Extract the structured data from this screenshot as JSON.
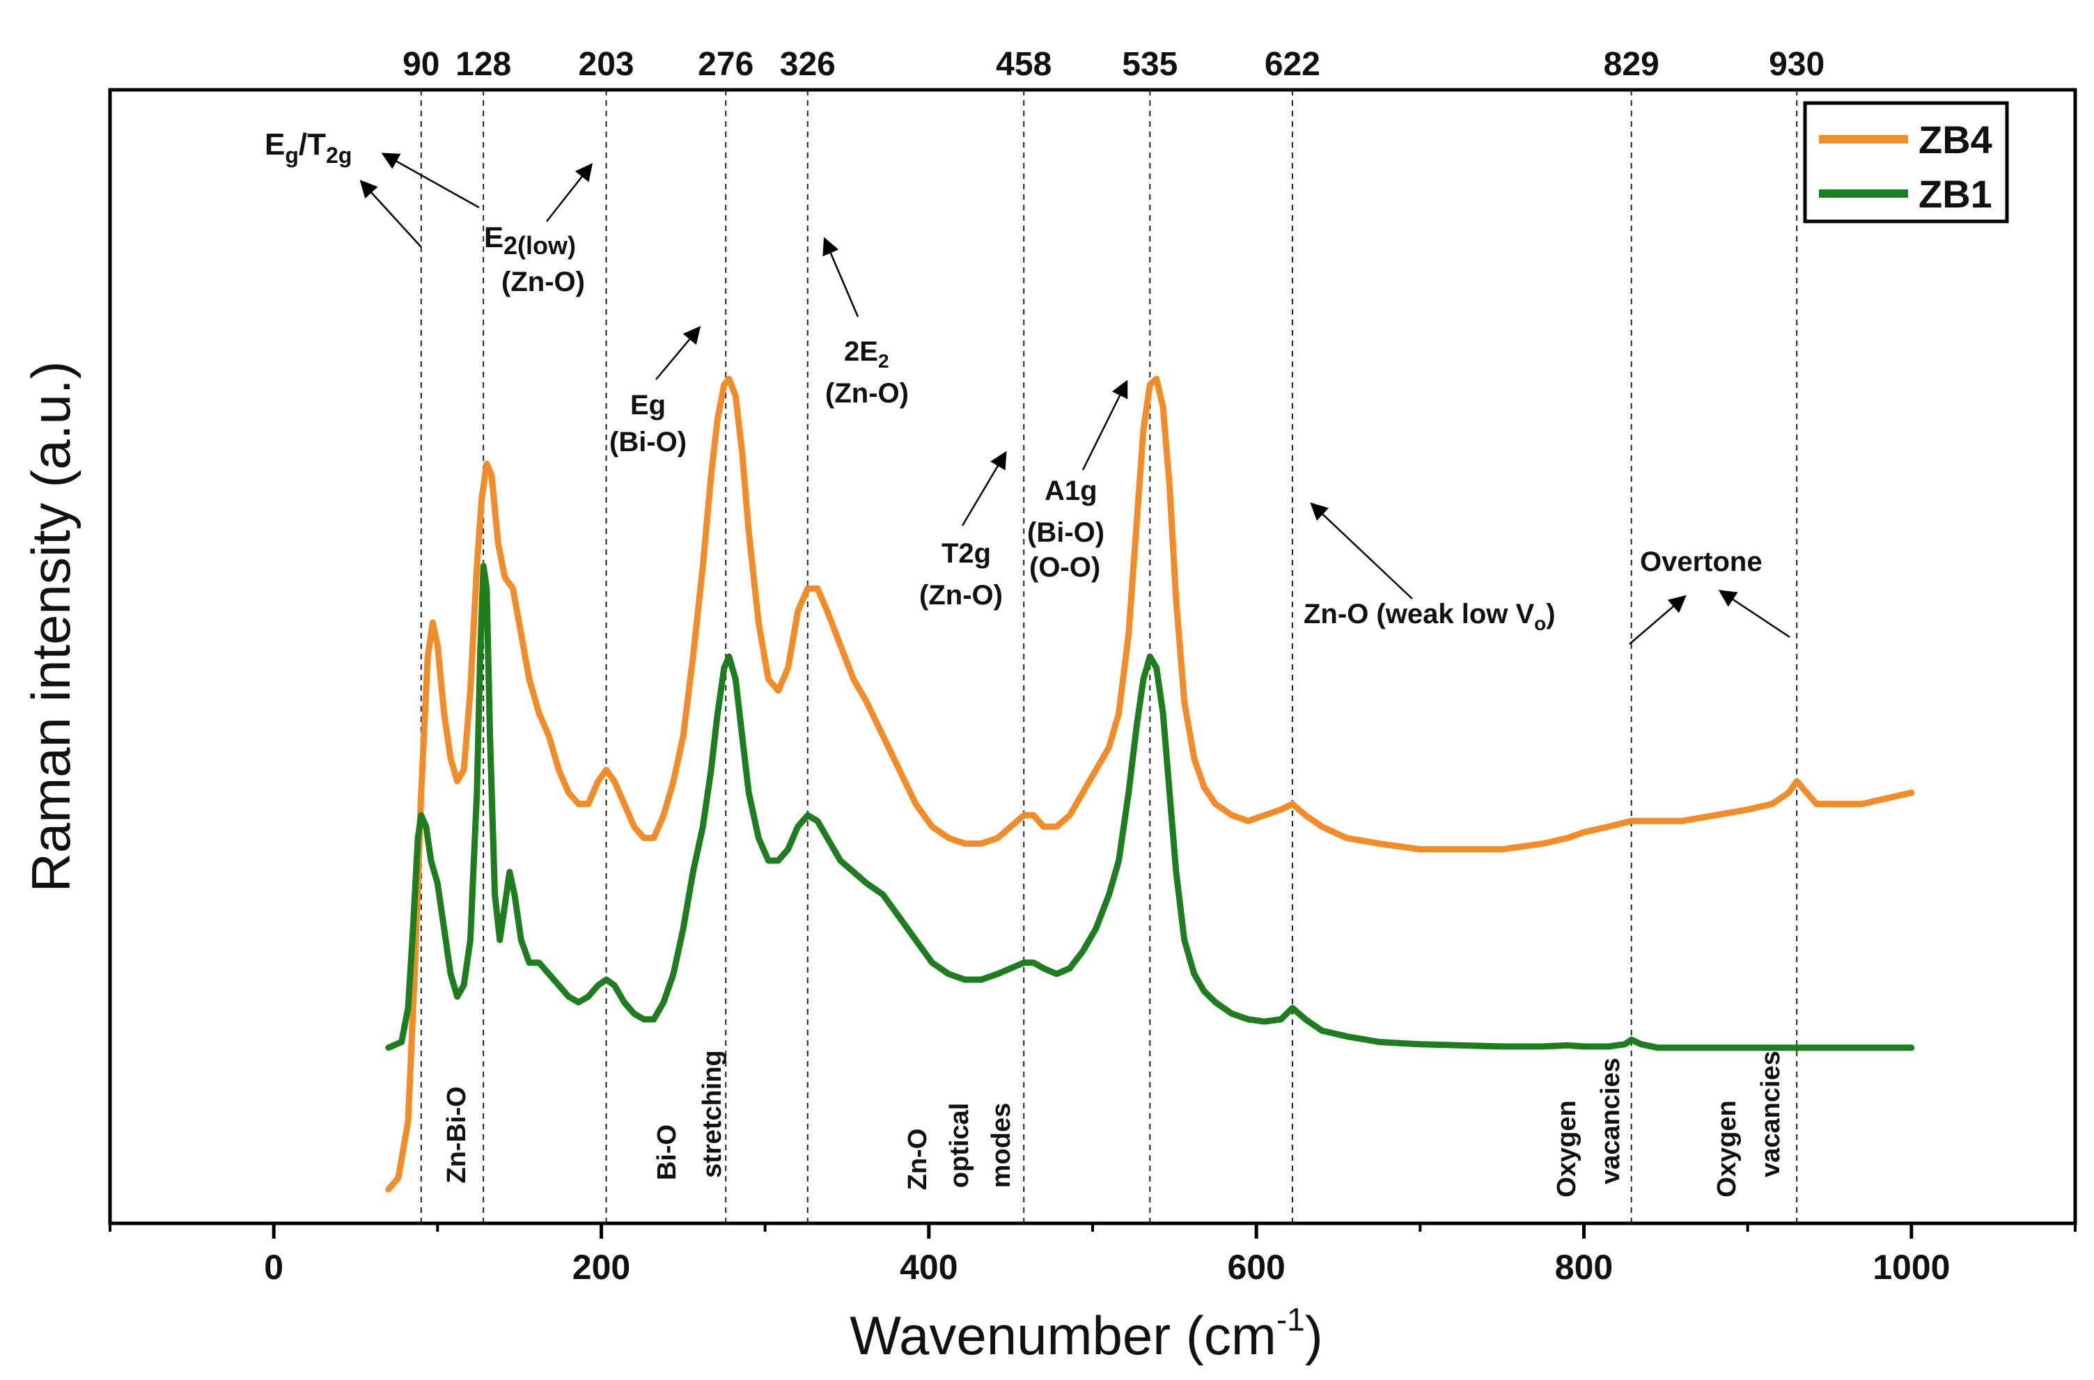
{
  "chart_data": {
    "type": "line",
    "xlabel": "Wavenumber (cm",
    "xlabel_sup": "-1",
    "xlabel_close": ")",
    "ylabel": "Raman intensity (a.u.)",
    "xlim": [
      -100,
      1100
    ],
    "x_ticks": [
      0,
      200,
      400,
      600,
      800,
      1000
    ],
    "x_minor_ticks": [
      -100,
      100,
      300,
      500,
      700,
      900,
      1100
    ],
    "y_ticks": [],
    "grid": false,
    "legend_position": "top-right",
    "series": [
      {
        "name": "ZB4",
        "color": "#f28c28",
        "points": [
          [
            70,
            0.03
          ],
          [
            76,
            0.04
          ],
          [
            82,
            0.09
          ],
          [
            86,
            0.22
          ],
          [
            90,
            0.38
          ],
          [
            94,
            0.5
          ],
          [
            97,
            0.53
          ],
          [
            100,
            0.51
          ],
          [
            104,
            0.45
          ],
          [
            108,
            0.41
          ],
          [
            112,
            0.39
          ],
          [
            116,
            0.4
          ],
          [
            120,
            0.47
          ],
          [
            124,
            0.58
          ],
          [
            127,
            0.64
          ],
          [
            130,
            0.67
          ],
          [
            133,
            0.66
          ],
          [
            137,
            0.6
          ],
          [
            141,
            0.57
          ],
          [
            146,
            0.56
          ],
          [
            151,
            0.52
          ],
          [
            156,
            0.48
          ],
          [
            162,
            0.45
          ],
          [
            168,
            0.43
          ],
          [
            174,
            0.4
          ],
          [
            180,
            0.38
          ],
          [
            186,
            0.37
          ],
          [
            192,
            0.37
          ],
          [
            198,
            0.39
          ],
          [
            203,
            0.4
          ],
          [
            208,
            0.39
          ],
          [
            214,
            0.37
          ],
          [
            220,
            0.35
          ],
          [
            226,
            0.34
          ],
          [
            232,
            0.34
          ],
          [
            238,
            0.36
          ],
          [
            244,
            0.39
          ],
          [
            250,
            0.43
          ],
          [
            256,
            0.5
          ],
          [
            262,
            0.58
          ],
          [
            267,
            0.66
          ],
          [
            271,
            0.71
          ],
          [
            275,
            0.74
          ],
          [
            278,
            0.745
          ],
          [
            282,
            0.73
          ],
          [
            286,
            0.68
          ],
          [
            290,
            0.61
          ],
          [
            296,
            0.53
          ],
          [
            302,
            0.48
          ],
          [
            308,
            0.47
          ],
          [
            314,
            0.49
          ],
          [
            320,
            0.54
          ],
          [
            326,
            0.56
          ],
          [
            332,
            0.56
          ],
          [
            338,
            0.54
          ],
          [
            346,
            0.51
          ],
          [
            354,
            0.48
          ],
          [
            362,
            0.46
          ],
          [
            372,
            0.43
          ],
          [
            382,
            0.4
          ],
          [
            392,
            0.37
          ],
          [
            402,
            0.35
          ],
          [
            412,
            0.34
          ],
          [
            422,
            0.335
          ],
          [
            432,
            0.335
          ],
          [
            442,
            0.34
          ],
          [
            450,
            0.35
          ],
          [
            458,
            0.36
          ],
          [
            464,
            0.36
          ],
          [
            470,
            0.35
          ],
          [
            478,
            0.35
          ],
          [
            486,
            0.36
          ],
          [
            494,
            0.38
          ],
          [
            502,
            0.4
          ],
          [
            510,
            0.42
          ],
          [
            516,
            0.45
          ],
          [
            522,
            0.52
          ],
          [
            527,
            0.62
          ],
          [
            531,
            0.7
          ],
          [
            535,
            0.74
          ],
          [
            539,
            0.745
          ],
          [
            543,
            0.72
          ],
          [
            547,
            0.65
          ],
          [
            551,
            0.55
          ],
          [
            556,
            0.46
          ],
          [
            562,
            0.41
          ],
          [
            568,
            0.385
          ],
          [
            575,
            0.37
          ],
          [
            585,
            0.36
          ],
          [
            595,
            0.355
          ],
          [
            605,
            0.36
          ],
          [
            615,
            0.365
          ],
          [
            622,
            0.37
          ],
          [
            630,
            0.36
          ],
          [
            640,
            0.35
          ],
          [
            655,
            0.34
          ],
          [
            675,
            0.335
          ],
          [
            700,
            0.33
          ],
          [
            725,
            0.33
          ],
          [
            750,
            0.33
          ],
          [
            775,
            0.335
          ],
          [
            790,
            0.34
          ],
          [
            800,
            0.345
          ],
          [
            815,
            0.35
          ],
          [
            829,
            0.355
          ],
          [
            845,
            0.355
          ],
          [
            860,
            0.355
          ],
          [
            880,
            0.36
          ],
          [
            900,
            0.365
          ],
          [
            915,
            0.37
          ],
          [
            925,
            0.38
          ],
          [
            930,
            0.39
          ],
          [
            936,
            0.38
          ],
          [
            942,
            0.37
          ],
          [
            955,
            0.37
          ],
          [
            970,
            0.37
          ],
          [
            985,
            0.375
          ],
          [
            1000,
            0.38
          ]
        ]
      },
      {
        "name": "ZB1",
        "color": "#1e7d1e",
        "points": [
          [
            70,
            0.155
          ],
          [
            78,
            0.16
          ],
          [
            82,
            0.19
          ],
          [
            85,
            0.26
          ],
          [
            88,
            0.34
          ],
          [
            90,
            0.36
          ],
          [
            93,
            0.35
          ],
          [
            96,
            0.32
          ],
          [
            100,
            0.3
          ],
          [
            104,
            0.26
          ],
          [
            108,
            0.22
          ],
          [
            112,
            0.2
          ],
          [
            116,
            0.21
          ],
          [
            120,
            0.25
          ],
          [
            124,
            0.38
          ],
          [
            126,
            0.5
          ],
          [
            128,
            0.58
          ],
          [
            130,
            0.56
          ],
          [
            132,
            0.43
          ],
          [
            135,
            0.29
          ],
          [
            138,
            0.25
          ],
          [
            141,
            0.28
          ],
          [
            144,
            0.31
          ],
          [
            147,
            0.29
          ],
          [
            151,
            0.25
          ],
          [
            156,
            0.23
          ],
          [
            162,
            0.23
          ],
          [
            168,
            0.22
          ],
          [
            174,
            0.21
          ],
          [
            180,
            0.2
          ],
          [
            186,
            0.195
          ],
          [
            192,
            0.2
          ],
          [
            198,
            0.21
          ],
          [
            203,
            0.215
          ],
          [
            208,
            0.21
          ],
          [
            214,
            0.195
          ],
          [
            220,
            0.185
          ],
          [
            226,
            0.18
          ],
          [
            232,
            0.18
          ],
          [
            238,
            0.195
          ],
          [
            244,
            0.22
          ],
          [
            250,
            0.26
          ],
          [
            256,
            0.31
          ],
          [
            262,
            0.35
          ],
          [
            267,
            0.4
          ],
          [
            271,
            0.45
          ],
          [
            275,
            0.49
          ],
          [
            278,
            0.5
          ],
          [
            282,
            0.48
          ],
          [
            286,
            0.43
          ],
          [
            290,
            0.38
          ],
          [
            296,
            0.34
          ],
          [
            302,
            0.32
          ],
          [
            308,
            0.32
          ],
          [
            314,
            0.33
          ],
          [
            320,
            0.35
          ],
          [
            326,
            0.36
          ],
          [
            332,
            0.355
          ],
          [
            338,
            0.34
          ],
          [
            346,
            0.32
          ],
          [
            354,
            0.31
          ],
          [
            362,
            0.3
          ],
          [
            372,
            0.29
          ],
          [
            382,
            0.27
          ],
          [
            392,
            0.25
          ],
          [
            402,
            0.23
          ],
          [
            412,
            0.22
          ],
          [
            422,
            0.215
          ],
          [
            432,
            0.215
          ],
          [
            442,
            0.22
          ],
          [
            450,
            0.225
          ],
          [
            458,
            0.23
          ],
          [
            464,
            0.23
          ],
          [
            470,
            0.225
          ],
          [
            478,
            0.22
          ],
          [
            486,
            0.225
          ],
          [
            494,
            0.24
          ],
          [
            502,
            0.26
          ],
          [
            510,
            0.29
          ],
          [
            516,
            0.32
          ],
          [
            522,
            0.38
          ],
          [
            527,
            0.44
          ],
          [
            531,
            0.48
          ],
          [
            535,
            0.5
          ],
          [
            539,
            0.49
          ],
          [
            543,
            0.45
          ],
          [
            547,
            0.38
          ],
          [
            551,
            0.31
          ],
          [
            556,
            0.25
          ],
          [
            562,
            0.22
          ],
          [
            568,
            0.205
          ],
          [
            575,
            0.195
          ],
          [
            585,
            0.185
          ],
          [
            595,
            0.18
          ],
          [
            605,
            0.178
          ],
          [
            615,
            0.18
          ],
          [
            622,
            0.19
          ],
          [
            630,
            0.18
          ],
          [
            640,
            0.17
          ],
          [
            655,
            0.165
          ],
          [
            675,
            0.16
          ],
          [
            700,
            0.158
          ],
          [
            725,
            0.157
          ],
          [
            750,
            0.156
          ],
          [
            775,
            0.156
          ],
          [
            790,
            0.157
          ],
          [
            800,
            0.156
          ],
          [
            815,
            0.156
          ],
          [
            825,
            0.158
          ],
          [
            829,
            0.162
          ],
          [
            835,
            0.158
          ],
          [
            845,
            0.155
          ],
          [
            870,
            0.155
          ],
          [
            900,
            0.155
          ],
          [
            930,
            0.155
          ],
          [
            960,
            0.155
          ],
          [
            1000,
            0.155
          ]
        ]
      }
    ],
    "reference_lines": [
      {
        "label": "90",
        "x": 90
      },
      {
        "label": "128",
        "x": 128
      },
      {
        "label": "203",
        "x": 203
      },
      {
        "label": "276",
        "x": 276
      },
      {
        "label": "326",
        "x": 326
      },
      {
        "label": "458",
        "x": 458
      },
      {
        "label": "535",
        "x": 535
      },
      {
        "label": "622",
        "x": 622
      },
      {
        "label": "829",
        "x": 829
      },
      {
        "label": "930",
        "x": 930
      }
    ],
    "mode_annotations": {
      "eg_t2g": {
        "main1": "E",
        "sub1": "g",
        "sep": "/T",
        "sub2": "2g"
      },
      "e2_low": {
        "main": "E",
        "sub": "2(low)"
      },
      "e2_low_group": "(Zn-O)",
      "eg_label": "Eg",
      "eg_group": "(Bi-O)",
      "two_e2": {
        "main": "2E",
        "sub": "2"
      },
      "two_e2_group": "(Zn-O)",
      "t2g_label": "T2g",
      "t2g_group": "(Zn-O)",
      "a1g_label": "A1g",
      "a1g_group1": "(Bi-O)",
      "a1g_group2": "(O-O)",
      "zno_weak": {
        "main": "Zn-O (weak low V",
        "sub": "o",
        "close": ")"
      },
      "overtone": "Overtone"
    },
    "band_labels": {
      "zn_bi_o": "Zn-Bi-O",
      "bi_o": "Bi-O",
      "stretching": "stretching",
      "zn_o": "Zn-O",
      "optical": "optical",
      "modes": "modes",
      "oxygen_1": "Oxygen",
      "vacancies_1": "vacancies",
      "oxygen_2": "Oxygen",
      "vacancies_2": "vacancies"
    }
  }
}
